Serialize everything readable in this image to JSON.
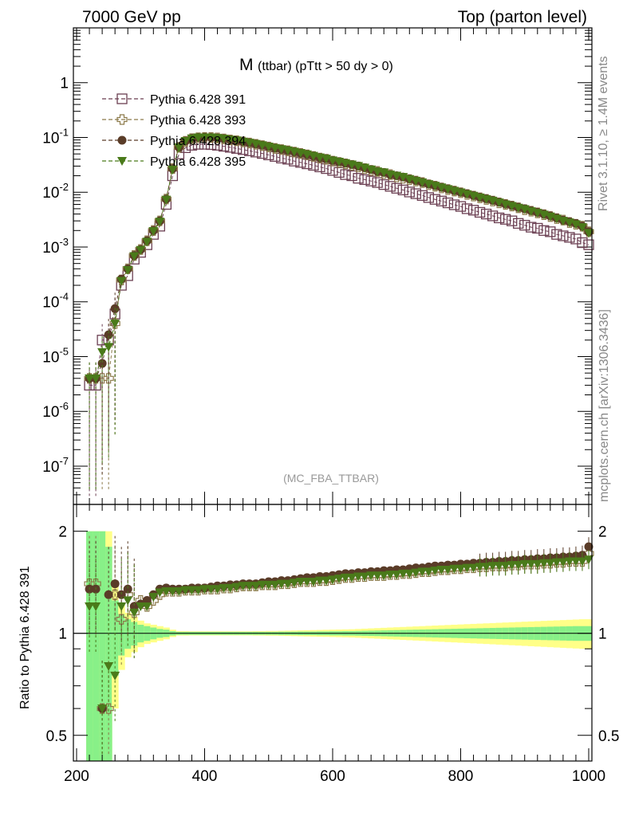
{
  "header": {
    "left": "7000 GeV pp",
    "right": "Top (parton level)"
  },
  "side_text": {
    "rivet": "Rivet 3.1.10, ≥ 1.4M events",
    "mcplots": "mcplots.cern.ch [arXiv:1306.3436]"
  },
  "watermark": "(MC_FBA_TTBAR)",
  "chart_data": [
    {
      "type": "scatter",
      "panel": "main",
      "title_main": "M",
      "title_sub": "(ttbar) (pTtt > 50 dy > 0)",
      "xlabel": "",
      "ylabel": "",
      "xlim": [
        195,
        1005
      ],
      "ylim": [
        2e-08,
        10
      ],
      "yscale": "log",
      "ytick_values": [
        1e-07,
        1e-06,
        1e-05,
        0.0001,
        0.001,
        0.01,
        0.1,
        1
      ],
      "ytick_labels": [
        "10^-7",
        "10^-6",
        "10^-5",
        "10^-4",
        "10^-3",
        "10^-2",
        "10^-1",
        "1"
      ],
      "legend_position": "top-left",
      "x": [
        220,
        230,
        240,
        250,
        260,
        270,
        280,
        290,
        300,
        310,
        320,
        330,
        340,
        350,
        360,
        370,
        380,
        390,
        400,
        410,
        420,
        430,
        440,
        450,
        460,
        470,
        480,
        490,
        500,
        510,
        520,
        530,
        540,
        550,
        560,
        570,
        580,
        590,
        600,
        610,
        620,
        630,
        640,
        650,
        660,
        670,
        680,
        690,
        700,
        710,
        720,
        730,
        740,
        750,
        760,
        770,
        780,
        790,
        800,
        810,
        820,
        830,
        840,
        850,
        860,
        870,
        880,
        890,
        900,
        910,
        920,
        930,
        940,
        950,
        960,
        970,
        980,
        990,
        1000
      ],
      "series": [
        {
          "name": "Pythia 6.428 391",
          "marker": "open-square",
          "color": "#6b3f52",
          "values": [
            3e-06,
            3e-06,
            2e-05,
            2e-05,
            6e-05,
            0.0002,
            0.0003,
            0.0006,
            0.0008,
            0.0011,
            0.0017,
            0.0024,
            0.006,
            0.02,
            0.05,
            0.065,
            0.072,
            0.075,
            0.075,
            0.074,
            0.072,
            0.069,
            0.066,
            0.063,
            0.06,
            0.057,
            0.054,
            0.051,
            0.048,
            0.045,
            0.042,
            0.04,
            0.037,
            0.035,
            0.033,
            0.031,
            0.029,
            0.027,
            0.025,
            0.023,
            0.021,
            0.02,
            0.018,
            0.017,
            0.016,
            0.015,
            0.0138,
            0.0128,
            0.0118,
            0.011,
            0.0101,
            0.0094,
            0.0087,
            0.008,
            0.0074,
            0.0069,
            0.0064,
            0.0059,
            0.0055,
            0.005,
            0.0047,
            0.0043,
            0.004,
            0.0037,
            0.0034,
            0.0032,
            0.003,
            0.0027,
            0.0025,
            0.0023,
            0.0022,
            0.002,
            0.0019,
            0.0017,
            0.0016,
            0.0015,
            0.0014,
            0.0012,
            0.0011
          ]
        },
        {
          "name": "Pythia 6.428 393",
          "marker": "open-cross",
          "color": "#8c7a4a",
          "values": [
            4e-06,
            4e-06,
            4e-06,
            4e-06,
            4e-05,
            0.00025,
            0.0004,
            0.0007,
            0.0009,
            0.0013,
            0.002,
            0.003,
            0.0075,
            0.027,
            0.066,
            0.085,
            0.095,
            0.099,
            0.1,
            0.1,
            0.098,
            0.094,
            0.09,
            0.087,
            0.083,
            0.079,
            0.075,
            0.071,
            0.067,
            0.063,
            0.06,
            0.057,
            0.054,
            0.051,
            0.048,
            0.045,
            0.042,
            0.04,
            0.037,
            0.035,
            0.033,
            0.031,
            0.029,
            0.027,
            0.025,
            0.024,
            0.022,
            0.021,
            0.019,
            0.018,
            0.017,
            0.016,
            0.015,
            0.0137,
            0.0129,
            0.012,
            0.0112,
            0.0105,
            0.0098,
            0.0091,
            0.0085,
            0.0079,
            0.0074,
            0.0069,
            0.0064,
            0.006,
            0.0056,
            0.0052,
            0.0048,
            0.0045,
            0.0042,
            0.0039,
            0.0036,
            0.0033,
            0.0031,
            0.0028,
            0.0026,
            0.0024,
            0.0019
          ]
        },
        {
          "name": "Pythia 6.428 394",
          "marker": "filled-circle",
          "color": "#5a3c28",
          "values": [
            4e-06,
            4e-06,
            7.5e-06,
            2.5e-05,
            7.5e-05,
            0.00026,
            0.0004,
            0.0007,
            0.0009,
            0.0013,
            0.002,
            0.003,
            0.0075,
            0.027,
            0.066,
            0.086,
            0.096,
            0.1,
            0.101,
            0.1,
            0.098,
            0.095,
            0.091,
            0.088,
            0.084,
            0.08,
            0.076,
            0.072,
            0.068,
            0.064,
            0.061,
            0.058,
            0.055,
            0.052,
            0.049,
            0.046,
            0.043,
            0.041,
            0.038,
            0.036,
            0.034,
            0.032,
            0.03,
            0.028,
            0.026,
            0.024,
            0.023,
            0.021,
            0.02,
            0.019,
            0.0175,
            0.0163,
            0.0152,
            0.0141,
            0.0132,
            0.0123,
            0.0115,
            0.0107,
            0.01,
            0.0094,
            0.0087,
            0.0081,
            0.0076,
            0.0071,
            0.0066,
            0.0061,
            0.0057,
            0.0053,
            0.005,
            0.0046,
            0.0043,
            0.004,
            0.0037,
            0.0034,
            0.0031,
            0.0029,
            0.0027,
            0.0024,
            0.0019
          ]
        },
        {
          "name": "Pythia 6.428 395",
          "marker": "filled-triangle-down",
          "color": "#4a7a1a",
          "values": [
            4e-06,
            4e-06,
            1.2e-05,
            1.5e-05,
            4e-05,
            0.00024,
            0.00038,
            0.00068,
            0.00088,
            0.00125,
            0.00195,
            0.0029,
            0.0073,
            0.026,
            0.066,
            0.086,
            0.096,
            0.1,
            0.1,
            0.1,
            0.098,
            0.095,
            0.091,
            0.088,
            0.084,
            0.08,
            0.076,
            0.072,
            0.068,
            0.064,
            0.061,
            0.058,
            0.055,
            0.052,
            0.049,
            0.046,
            0.043,
            0.041,
            0.038,
            0.036,
            0.034,
            0.032,
            0.03,
            0.028,
            0.026,
            0.024,
            0.023,
            0.021,
            0.02,
            0.019,
            0.0174,
            0.0162,
            0.0151,
            0.014,
            0.0131,
            0.0122,
            0.0114,
            0.0106,
            0.0099,
            0.0092,
            0.0086,
            0.008,
            0.0075,
            0.007,
            0.0065,
            0.006,
            0.0056,
            0.0052,
            0.0049,
            0.0045,
            0.0042,
            0.0039,
            0.0036,
            0.0033,
            0.003,
            0.0028,
            0.0026,
            0.0023,
            0.0018
          ]
        }
      ]
    },
    {
      "type": "scatter",
      "panel": "ratio",
      "xlabel": "",
      "ylabel": "Ratio to Pythia 6.428 391",
      "xlim": [
        195,
        1005
      ],
      "ylim": [
        0.42,
        2.4
      ],
      "yscale": "log",
      "ytick_values": [
        0.5,
        1,
        2
      ],
      "ytick_labels": [
        "0.5",
        "1",
        "2"
      ],
      "xtick_values": [
        200,
        400,
        600,
        800,
        1000
      ],
      "xtick_labels": [
        "200",
        "400",
        "600",
        "800",
        "1000"
      ],
      "reference_line": 1,
      "band_green_halfwidth": [
        1.0,
        1.0,
        1.0,
        0.8,
        0.25,
        0.14,
        0.1,
        0.08,
        0.06,
        0.05,
        0.04,
        0.03,
        0.025,
        0.015,
        0.01,
        0.01,
        0.01,
        0.01,
        0.01,
        0.01,
        0.01,
        0.01,
        0.01,
        0.01,
        0.01,
        0.01,
        0.01,
        0.01,
        0.01,
        0.01,
        0.011,
        0.011,
        0.011,
        0.012,
        0.012,
        0.012,
        0.013,
        0.013,
        0.014,
        0.014,
        0.015,
        0.015,
        0.016,
        0.017,
        0.018,
        0.019,
        0.02,
        0.021,
        0.022,
        0.023,
        0.024,
        0.025,
        0.026,
        0.027,
        0.028,
        0.029,
        0.03,
        0.031,
        0.032,
        0.033,
        0.034,
        0.035,
        0.036,
        0.037,
        0.038,
        0.039,
        0.04,
        0.041,
        0.042,
        0.043,
        0.044,
        0.045,
        0.046,
        0.047,
        0.048,
        0.049,
        0.05,
        0.05,
        0.05
      ],
      "band_yellow_halfwidth": [
        1.0,
        1.0,
        1.0,
        1.0,
        0.4,
        0.22,
        0.15,
        0.12,
        0.09,
        0.07,
        0.06,
        0.05,
        0.04,
        0.025,
        0.015,
        0.015,
        0.014,
        0.014,
        0.014,
        0.014,
        0.014,
        0.014,
        0.014,
        0.014,
        0.014,
        0.014,
        0.015,
        0.015,
        0.016,
        0.016,
        0.017,
        0.018,
        0.019,
        0.02,
        0.021,
        0.022,
        0.023,
        0.024,
        0.025,
        0.026,
        0.027,
        0.028,
        0.03,
        0.032,
        0.034,
        0.036,
        0.038,
        0.04,
        0.042,
        0.044,
        0.046,
        0.048,
        0.05,
        0.052,
        0.054,
        0.056,
        0.058,
        0.06,
        0.062,
        0.064,
        0.066,
        0.068,
        0.07,
        0.072,
        0.074,
        0.076,
        0.078,
        0.08,
        0.082,
        0.084,
        0.086,
        0.088,
        0.09,
        0.092,
        0.094,
        0.096,
        0.098,
        0.1,
        0.1
      ],
      "series": [
        {
          "name": "Pythia 6.428 393",
          "marker": "open-cross",
          "color": "#8c7a4a",
          "values": [
            1.4,
            1.4,
            0.6,
            0.6,
            1.3,
            1.1,
            1.3,
            1.15,
            1.25,
            1.2,
            1.25,
            1.3,
            1.33,
            1.33,
            1.33,
            1.34,
            1.34,
            1.34,
            1.35,
            1.35,
            1.35,
            1.36,
            1.36,
            1.37,
            1.38,
            1.38,
            1.38,
            1.39,
            1.39,
            1.39,
            1.4,
            1.4,
            1.41,
            1.42,
            1.42,
            1.42,
            1.43,
            1.43,
            1.44,
            1.45,
            1.46,
            1.46,
            1.47,
            1.47,
            1.48,
            1.48,
            1.48,
            1.49,
            1.49,
            1.5,
            1.5,
            1.51,
            1.52,
            1.52,
            1.53,
            1.54,
            1.54,
            1.55,
            1.55,
            1.56,
            1.56,
            1.57,
            1.57,
            1.58,
            1.58,
            1.58,
            1.59,
            1.59,
            1.6,
            1.6,
            1.6,
            1.61,
            1.61,
            1.62,
            1.62,
            1.63,
            1.63,
            1.63,
            1.72
          ]
        },
        {
          "name": "Pythia 6.428 394",
          "marker": "filled-circle",
          "color": "#5a3c28",
          "values": [
            1.35,
            1.35,
            0.6,
            1.3,
            1.4,
            1.3,
            1.35,
            1.2,
            1.22,
            1.25,
            1.3,
            1.35,
            1.36,
            1.35,
            1.35,
            1.35,
            1.36,
            1.36,
            1.36,
            1.37,
            1.38,
            1.38,
            1.39,
            1.39,
            1.4,
            1.4,
            1.4,
            1.41,
            1.42,
            1.42,
            1.43,
            1.43,
            1.44,
            1.45,
            1.46,
            1.46,
            1.47,
            1.47,
            1.48,
            1.49,
            1.5,
            1.5,
            1.51,
            1.51,
            1.52,
            1.52,
            1.53,
            1.53,
            1.54,
            1.54,
            1.55,
            1.56,
            1.56,
            1.57,
            1.58,
            1.58,
            1.59,
            1.59,
            1.6,
            1.6,
            1.61,
            1.61,
            1.62,
            1.62,
            1.63,
            1.63,
            1.64,
            1.64,
            1.65,
            1.65,
            1.66,
            1.66,
            1.67,
            1.67,
            1.68,
            1.68,
            1.69,
            1.7,
            1.8
          ]
        },
        {
          "name": "Pythia 6.428 395",
          "marker": "filled-triangle-down",
          "color": "#4a7a1a",
          "values": [
            1.2,
            1.2,
            0.6,
            0.8,
            0.75,
            1.2,
            1.25,
            1.15,
            1.2,
            1.2,
            1.28,
            1.32,
            1.33,
            1.33,
            1.33,
            1.34,
            1.34,
            1.34,
            1.35,
            1.35,
            1.35,
            1.36,
            1.36,
            1.37,
            1.38,
            1.38,
            1.38,
            1.39,
            1.39,
            1.39,
            1.4,
            1.4,
            1.41,
            1.42,
            1.42,
            1.42,
            1.43,
            1.43,
            1.44,
            1.45,
            1.46,
            1.46,
            1.47,
            1.47,
            1.48,
            1.48,
            1.48,
            1.49,
            1.49,
            1.5,
            1.5,
            1.51,
            1.52,
            1.52,
            1.53,
            1.54,
            1.54,
            1.55,
            1.55,
            1.56,
            1.56,
            1.57,
            1.57,
            1.58,
            1.58,
            1.58,
            1.59,
            1.59,
            1.6,
            1.6,
            1.6,
            1.61,
            1.61,
            1.62,
            1.62,
            1.63,
            1.63,
            1.63,
            1.65
          ]
        }
      ]
    }
  ]
}
